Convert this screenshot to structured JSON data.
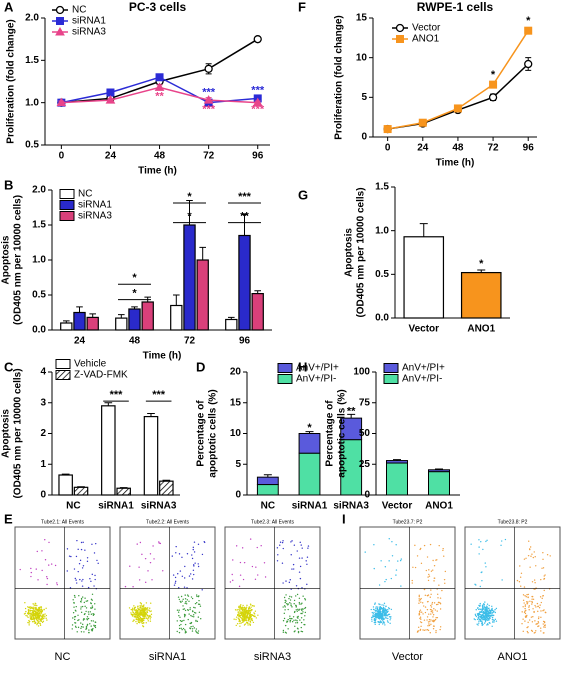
{
  "chart_data": [
    {
      "panel": "A",
      "type": "line",
      "title": "PC-3 cells",
      "xlabel": "Time (h)",
      "ylabel": [
        "Proliferation (fold change)"
      ],
      "x": [
        0,
        24,
        48,
        72,
        96
      ],
      "xlim": [
        -8,
        102
      ],
      "xticks": [
        0,
        24,
        48,
        72,
        96
      ],
      "ylim": [
        0.5,
        2.0
      ],
      "yticks": [
        0.5,
        {
          "value": 1,
          "label": "1.0"
        },
        1.5,
        {
          "value": 2,
          "label": "2.0"
        }
      ],
      "series": [
        {
          "name": "NC",
          "color": "#000000",
          "marker": "circle",
          "open": true,
          "values": [
            1.0,
            1.05,
            1.25,
            1.4,
            1.75
          ],
          "errors": [
            0.02,
            0.02,
            0.03,
            0.06,
            0.02
          ]
        },
        {
          "name": "siRNA1",
          "color": "#2b2bd6",
          "marker": "square",
          "values": [
            1.0,
            1.12,
            1.3,
            1.0,
            1.05
          ],
          "errors": [
            0.02,
            0.02,
            0.03,
            0.03,
            0.03
          ]
        },
        {
          "name": "siRNA3",
          "color": "#e8448a",
          "marker": "triangle",
          "values": [
            1.0,
            1.03,
            1.18,
            1.03,
            1.0
          ],
          "errors": [
            0.02,
            0.02,
            0.03,
            0.03,
            0.02
          ]
        }
      ],
      "annotations": [
        {
          "text": "**",
          "x": 48,
          "y": 1.07,
          "color": "#e8448a"
        },
        {
          "text": "***",
          "x": 72,
          "y": 1.12,
          "color": "#2b2bd6"
        },
        {
          "text": "***",
          "x": 72,
          "y": 0.92,
          "color": "#e8448a"
        },
        {
          "text": "***",
          "x": 96,
          "y": 1.14,
          "color": "#2b2bd6"
        },
        {
          "text": "***",
          "x": 96,
          "y": 0.92,
          "color": "#e8448a"
        }
      ]
    },
    {
      "panel": "F",
      "type": "line",
      "title": "RWPE-1 cells",
      "xlabel": "Time (h)",
      "ylabel": [
        "Proliferation (fold change)"
      ],
      "x": [
        0,
        24,
        48,
        72,
        96
      ],
      "xlim": [
        -10,
        102
      ],
      "xticks": [
        0,
        24,
        48,
        72,
        96
      ],
      "ylim": [
        0,
        15
      ],
      "yticks": [
        0,
        5,
        10,
        15
      ],
      "series": [
        {
          "name": "Vector",
          "color": "#000000",
          "marker": "circle",
          "open": true,
          "values": [
            1.0,
            1.7,
            3.4,
            5.0,
            9.2
          ],
          "errors": [
            0.1,
            0.1,
            0.3,
            0.4,
            0.8
          ]
        },
        {
          "name": "ANO1",
          "color": "#f7941d",
          "marker": "square",
          "values": [
            1.0,
            1.8,
            3.6,
            6.6,
            13.4
          ],
          "errors": [
            0.1,
            0.1,
            0.3,
            0.3,
            0.4
          ]
        }
      ],
      "annotations": [
        {
          "text": "*",
          "x": 72,
          "y": 7.8,
          "color": "#000000"
        },
        {
          "text": "*",
          "x": 96,
          "y": 14.6,
          "color": "#000000"
        }
      ]
    },
    {
      "panel": "B",
      "type": "bar",
      "xlabel": "Time (h)",
      "ylabel": [
        "Apoptosis",
        "(OD405 nm per 10000 cells)"
      ],
      "categories": [
        "24",
        "48",
        "72",
        "96"
      ],
      "ylim": [
        0,
        2
      ],
      "yticks": [
        {
          "value": 0,
          "label": "0.0"
        },
        0.5,
        {
          "value": 1,
          "label": "1.0"
        },
        1.5,
        {
          "value": 2,
          "label": "2.0"
        }
      ],
      "series": [
        {
          "name": "NC",
          "color": "#ffffff",
          "values": [
            0.1,
            0.17,
            0.35,
            0.15
          ],
          "errors": [
            0.03,
            0.05,
            0.15,
            0.03
          ]
        },
        {
          "name": "siRNA1",
          "color": "#2a2acb",
          "values": [
            0.25,
            0.3,
            1.5,
            1.35
          ],
          "errors": [
            0.08,
            0.03,
            0.35,
            0.3
          ]
        },
        {
          "name": "siRNA3",
          "color": "#d9407a",
          "values": [
            0.18,
            0.4,
            1.0,
            0.52
          ],
          "errors": [
            0.05,
            0.07,
            0.18,
            0.04
          ]
        }
      ],
      "annotations": [
        {
          "text": "*",
          "x": "48",
          "y": 0.52,
          "bracket": true
        },
        {
          "text": "*",
          "x": "48",
          "y": 0.74,
          "bracket": true
        },
        {
          "text": "*",
          "x": "72",
          "y": 1.62,
          "bracket": true
        },
        {
          "text": "*",
          "x": "72",
          "y": 1.9,
          "bracket": true
        },
        {
          "text": "**",
          "x": "96",
          "y": 1.62,
          "bracket": true
        },
        {
          "text": "***",
          "x": "96",
          "y": 1.9,
          "bracket": true
        }
      ]
    },
    {
      "panel": "G",
      "type": "bar",
      "ylabel": [
        "Apoptosis",
        "(OD405 nm per 10000 cells)"
      ],
      "categories": [
        "Vector",
        "ANO1"
      ],
      "ylim": [
        0,
        1.5
      ],
      "yticks": [
        {
          "value": 0,
          "label": "0.0"
        },
        0.5,
        {
          "value": 1,
          "label": "1.0"
        },
        1.5
      ],
      "values": [
        0.93,
        0.52
      ],
      "errors": [
        0.15,
        0.03
      ],
      "colors": [
        "#ffffff",
        "#f7941d"
      ],
      "annotations": [
        {
          "text": "*",
          "x": "ANO1",
          "y": 0.62
        }
      ]
    },
    {
      "panel": "C",
      "type": "bar",
      "ylabel": [
        "Apoptosis",
        "(OD405 nm per 10000 cells)"
      ],
      "categories": [
        "NC",
        "siRNA1",
        "siRNA3"
      ],
      "ylim": [
        0,
        4
      ],
      "yticks": [
        0,
        1,
        2,
        3,
        4
      ],
      "series": [
        {
          "name": "Vehicle",
          "color": "#ffffff",
          "values": [
            0.65,
            2.9,
            2.55
          ],
          "errors": [
            0.03,
            0.1,
            0.1
          ]
        },
        {
          "name": "Z-VAD-FMK",
          "color": "#ffffff",
          "pattern": "hatch",
          "values": [
            0.25,
            0.22,
            0.45
          ],
          "errors": [
            0.02,
            0.02,
            0.03
          ]
        }
      ],
      "annotations": [
        {
          "text": "***",
          "x": "siRNA1",
          "y": 3.25,
          "bracket": true
        },
        {
          "text": "***",
          "x": "siRNA3",
          "y": 3.25,
          "bracket": true
        }
      ]
    },
    {
      "panel": "D",
      "type": "stacked-bar",
      "ylabel": [
        "Percentage of",
        "apoptotic cells (%)"
      ],
      "categories": [
        "NC",
        "siRNA1",
        "siRNA3"
      ],
      "ylim": [
        0,
        20
      ],
      "yticks": [
        0,
        5,
        10,
        15,
        20
      ],
      "series": [
        {
          "name": "AnV+/PI+",
          "color": "#5a5adc",
          "values": [
            1.2,
            3.2,
            3.5
          ],
          "errors": [
            0.4,
            0.3,
            0.6
          ]
        },
        {
          "name": "AnV+/PI-",
          "color": "#4fe0a4",
          "values": [
            1.7,
            6.8,
            9.0
          ],
          "errors": [
            0.3,
            0.4,
            0.5
          ]
        }
      ],
      "annotations": [
        {
          "text": "*",
          "x": "siRNA1",
          "y": 10.9
        },
        {
          "text": "**",
          "x": "siRNA3",
          "y": 13.6
        }
      ]
    },
    {
      "panel": "H",
      "type": "stacked-bar",
      "ylabel": [
        "Percentage of",
        "apoptotic cells (%)"
      ],
      "categories": [
        "Vector",
        "ANO1"
      ],
      "ylim": [
        0,
        100
      ],
      "yticks": [
        0,
        25,
        50,
        75,
        100
      ],
      "series": [
        {
          "name": "AnV+/PI+",
          "color": "#5a5adc",
          "values": [
            2,
            1.5
          ],
          "errors": [
            0.8,
            0.6
          ]
        },
        {
          "name": "AnV+/PI-",
          "color": "#4fe0a4",
          "values": [
            26,
            19
          ],
          "errors": [
            1.5,
            1.2
          ]
        }
      ]
    },
    {
      "panel": "E",
      "type": "flow",
      "dot_colors": [
        "#d4d40a",
        "#3a9a3a",
        "#3535c8",
        "#c040c0"
      ],
      "plots": [
        {
          "title": "Tube2.1: All Events",
          "label": "NC"
        },
        {
          "title": "Tube2.2: All Events",
          "label": "siRNA1"
        },
        {
          "title": "Tube2.3: All Events",
          "label": "siRNA3"
        }
      ]
    },
    {
      "panel": "I",
      "type": "flow",
      "dot_colors": [
        "#3cbde8",
        "#f0a040",
        "#f0a040",
        "#3cbde8"
      ],
      "plots": [
        {
          "title": "Tube23.7: P2",
          "label": "Vector"
        },
        {
          "title": "Tube23.8: P2",
          "label": "ANO1"
        }
      ]
    }
  ]
}
